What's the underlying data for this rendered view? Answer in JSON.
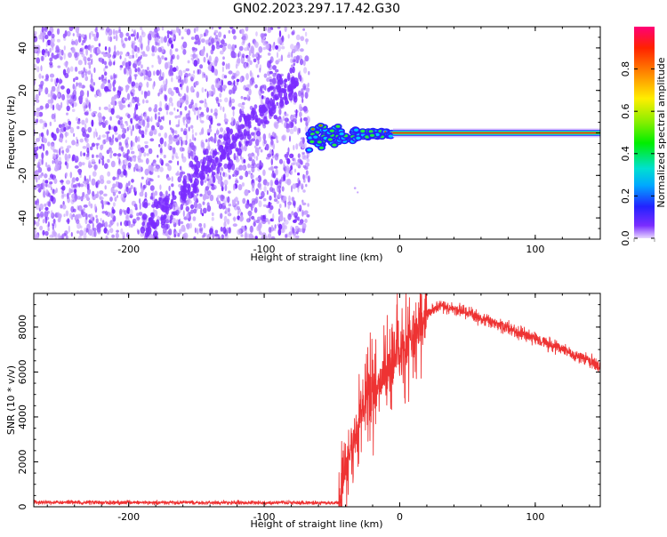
{
  "page_title": "GN02.2023.297.17.42.G30",
  "colors": {
    "snr_line": "#ee3333",
    "carrier_line": "#ee2222",
    "noise_main": "#7a2cff",
    "noise_light": "#c9a6ff"
  },
  "chart_data": [
    {
      "type": "heatmap",
      "title": "",
      "xlabel": "Height of straight line (km)",
      "ylabel": "Frequency (Hz)",
      "xlim": [
        -270,
        148
      ],
      "ylim": [
        -50,
        50
      ],
      "x_ticks": [
        -200,
        -100,
        0,
        100
      ],
      "x_tick_labels": [
        "-200",
        "-100",
        "0",
        "100"
      ],
      "y_ticks": [
        -40,
        -20,
        0,
        20,
        40
      ],
      "y_tick_labels": [
        "-40",
        "-20",
        "0",
        "20",
        "40"
      ],
      "grid": false,
      "colorbar": {
        "label": "Normalized spectral amplitude",
        "range": [
          0,
          1
        ],
        "ticks": [
          0,
          0.2,
          0.4,
          0.6,
          0.8
        ],
        "tick_labels": [
          "0.0",
          "0.2",
          "0.4",
          "0.6",
          "0.8"
        ]
      },
      "regions": {
        "noise_x_range": [
          -270,
          -67
        ],
        "transition_x_range": [
          -67,
          -5
        ],
        "carrier_x_range": [
          -5,
          148
        ],
        "carrier_frequency": 0
      }
    },
    {
      "type": "line",
      "title": "",
      "xlabel": "Height of straight line (km)",
      "ylabel": "SNR (10 * v/v)",
      "xlim": [
        -270,
        148
      ],
      "ylim": [
        0,
        9500
      ],
      "x_ticks": [
        -200,
        -100,
        0,
        100
      ],
      "x_tick_labels": [
        "-200",
        "-100",
        "0",
        "100"
      ],
      "y_ticks": [
        0,
        2000,
        4000,
        6000,
        8000
      ],
      "y_tick_labels": [
        "0",
        "2000",
        "4000",
        "6000",
        "8000"
      ],
      "grid": false,
      "series": [
        {
          "x": [
            -270,
            -200,
            -100,
            -45,
            -40,
            -35,
            -30,
            -25,
            -20,
            -15,
            -10,
            -5,
            0,
            5,
            10,
            15,
            20,
            25,
            30,
            35,
            40,
            50,
            60,
            80,
            100,
            120,
            140,
            148
          ],
          "y": [
            200,
            190,
            185,
            180,
            1500,
            3000,
            4000,
            4600,
            5100,
            5600,
            6000,
            6400,
            6800,
            7300,
            7800,
            8200,
            8600,
            8800,
            8900,
            8850,
            8800,
            8650,
            8400,
            7950,
            7500,
            7000,
            6500,
            6200
          ]
        }
      ]
    }
  ]
}
